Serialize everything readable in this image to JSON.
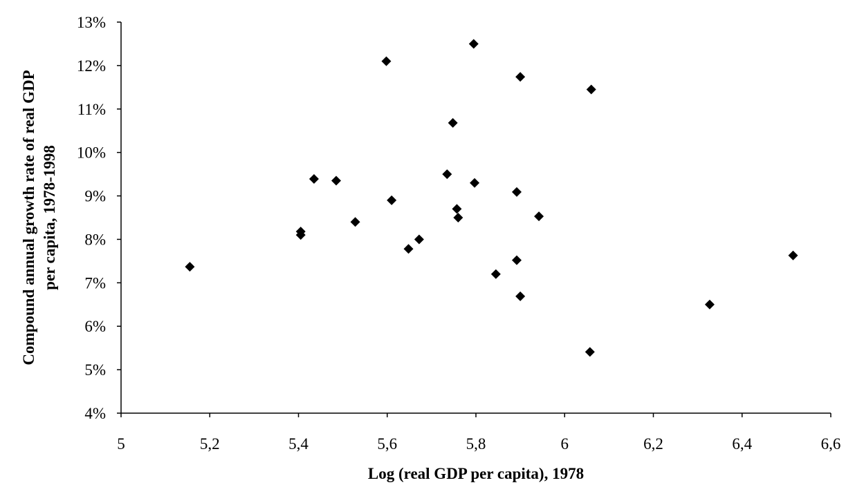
{
  "chart_data": {
    "type": "scatter",
    "title": "",
    "xlabel": "Log (real GDP per capita), 1978",
    "ylabel_lines": [
      "Compound annual growth rate of real GDP",
      "per capita, 1978-1998"
    ],
    "xlim": [
      5,
      6.6
    ],
    "ylim": [
      4,
      13
    ],
    "x_ticks": [
      "5",
      "5,2",
      "5,4",
      "5,6",
      "5,8",
      "6",
      "6,2",
      "6,4",
      "6,6"
    ],
    "y_ticks": [
      "4%",
      "5%",
      "6%",
      "7%",
      "8%",
      "9%",
      "10%",
      "11%",
      "12%",
      "13%"
    ],
    "grid": false,
    "legend": "none",
    "marker": "diamond",
    "marker_color": "#000000",
    "points": [
      {
        "x": 5.155,
        "y": 7.37
      },
      {
        "x": 5.405,
        "y": 8.18
      },
      {
        "x": 5.405,
        "y": 8.1
      },
      {
        "x": 5.435,
        "y": 9.39
      },
      {
        "x": 5.485,
        "y": 9.35
      },
      {
        "x": 5.528,
        "y": 8.4
      },
      {
        "x": 5.598,
        "y": 12.1
      },
      {
        "x": 5.61,
        "y": 8.9
      },
      {
        "x": 5.648,
        "y": 7.78
      },
      {
        "x": 5.672,
        "y": 8.0
      },
      {
        "x": 5.735,
        "y": 9.5
      },
      {
        "x": 5.748,
        "y": 10.68
      },
      {
        "x": 5.757,
        "y": 8.7
      },
      {
        "x": 5.76,
        "y": 8.5
      },
      {
        "x": 5.795,
        "y": 12.5
      },
      {
        "x": 5.797,
        "y": 9.3
      },
      {
        "x": 5.845,
        "y": 7.2
      },
      {
        "x": 5.892,
        "y": 9.09
      },
      {
        "x": 5.892,
        "y": 7.52
      },
      {
        "x": 5.9,
        "y": 11.74
      },
      {
        "x": 5.9,
        "y": 6.69
      },
      {
        "x": 5.942,
        "y": 8.53
      },
      {
        "x": 6.057,
        "y": 5.41
      },
      {
        "x": 6.06,
        "y": 11.45
      },
      {
        "x": 6.327,
        "y": 6.5
      },
      {
        "x": 6.515,
        "y": 7.63
      }
    ]
  }
}
